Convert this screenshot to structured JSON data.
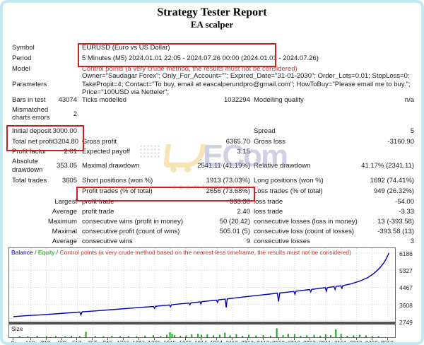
{
  "page": {
    "title": "Strategy Tester Report",
    "subtitle": "EA scalper"
  },
  "report": {
    "rows": [
      {
        "name": "row-symbol",
        "h": 15,
        "c1l": "Symbol",
        "wide": "EURUSD (Euro vs US Dollar)"
      },
      {
        "name": "row-period",
        "h": 15,
        "c1l": "Period",
        "wide": "5 Minutes (M5) 2024.01.01 22:05 - 2024.07.26 00:00 (2024.01.01 - 2024.07.26)"
      },
      {
        "name": "row-model",
        "h": 15,
        "c1l": "Model",
        "wide": "Control points (a very crude method, the results must not be considered)",
        "wide_red": true
      },
      {
        "name": "row-parameters",
        "h": 29,
        "c1l": "Parameters",
        "wide": "Owner=\"Saudagar Forex\"; Only_For_Account=\"\"; Expired_Date=\"31-01-2030\"; Order_Lots=0.01; StopLoss=0; TakePropit=4; Contact=\"To buy, email at eascalperundpro@gmail.com\"; HowToBuy=\"Please email me to buy.\"; Price=\"100USD via Netteler\";"
      },
      {
        "name": "row-bars-in-test",
        "h": 14,
        "c1l": "Bars in test",
        "c1v": "43074",
        "c2l": "Ticks modelled",
        "c2v": "1032294",
        "c3l": "Modelling quality",
        "c3v": "n/a"
      },
      {
        "name": "row-mismatched",
        "h": 26,
        "c1wrap": true,
        "c1l": "Mismatched charts errors",
        "c1v": "2"
      },
      {
        "spacer": true,
        "h": 4
      },
      {
        "name": "row-initial-deposit",
        "h": 15,
        "c1l": "Initial deposit",
        "c1v": "3000.00",
        "c3l": "Spread",
        "c3v": "5"
      },
      {
        "name": "row-net-profit",
        "h": 15,
        "c1l": "Total net profit",
        "c1v": "3204.80",
        "c2l": "Gross profit",
        "c2v": "6365.70",
        "c3l": "Gross loss",
        "c3v": "-3160.90"
      },
      {
        "name": "row-profit-factor",
        "h": 13,
        "c1l": "Profit factor",
        "c1v": "2.01",
        "c2l": "Expected payoff",
        "c2v": "3.15"
      },
      {
        "name": "row-drawdown",
        "h": 27,
        "c1wrap": true,
        "c1l": "Absolute drawdown",
        "c1v": "353.05",
        "c2l": "Maximal drawdown",
        "c2v": "2541.11 (41.19%)",
        "c3l": "Relative drawdown",
        "c3v": "41.17% (2341.11)"
      },
      {
        "name": "row-total-trades",
        "h": 15,
        "c1l": "Total trades",
        "c1v": "3605",
        "c2l": "Short positions (won %)",
        "c2v": "1913 (73.03%)",
        "c3l": "Long positions (won %)",
        "c3v": "1692 (74.41%)"
      },
      {
        "name": "row-profit-trades",
        "h": 15,
        "c2l": "Profit trades (% of total)",
        "c2v": "2656 (73.68%)",
        "c3l": "Loss trades (% of total)",
        "c3v": "949 (26.32%)"
      },
      {
        "name": "row-largest",
        "h": 14,
        "c1v": "Largest",
        "c2l": "profit trade",
        "c2v": "333.38",
        "c3l": "loss trade",
        "c3v": "-54.00"
      },
      {
        "name": "row-average-trade",
        "h": 14,
        "c1v": "Average",
        "c2l": "profit trade",
        "c2v": "2.40",
        "c3l": "loss trade",
        "c3v": "-3.33"
      },
      {
        "name": "row-maximum-consecutive",
        "h": 14,
        "c1v": "Maximum",
        "c2l": "consecutive wins (profit in money)",
        "c2v": "50 (20.42)",
        "c3l": "consecutive losses (loss in money)",
        "c3v": "13 (-393.58)"
      },
      {
        "name": "row-maximal-consecutive",
        "h": 14,
        "c1v": "Maximal",
        "c2l": "consecutive profit (count of wins)",
        "c2v": "505.01 (5)",
        "c3l": "consecutive loss (count of losses)",
        "c3v": "-393.58 (13)"
      },
      {
        "name": "row-average-consecutive",
        "h": 14,
        "c1v": "Average",
        "c2l": "consecutive wins",
        "c2v": "9",
        "c3l": "consecutive losses",
        "c3v": "3"
      }
    ]
  },
  "chart_header": {
    "balance": "Balance",
    "equity": "Equity",
    "sep": " / ",
    "note": "Control points (a very crude method based on the nearest less timeframe, the results must not be considered)"
  },
  "watermark": {
    "logo_text": "ECom",
    "caption": "ecomforex.com"
  },
  "colors": {
    "accent_red": "#d22d2d",
    "balance_blue": "#0000b4",
    "equity_green": "#00a000",
    "bars_green": "#18a31c",
    "frame_cyan": "#bfe8ef",
    "grid_gray": "#cfcfcf"
  },
  "chart_data": {
    "type": "line",
    "title": "Balance / Equity / Control points (a very crude method based on the nearest less timeframe, the results must not be considered)",
    "legend_position": "top-left",
    "grid": true,
    "x_range": [
      -40,
      3680
    ],
    "y_range": [
      2749,
      6430
    ],
    "x_ticks": [
      0,
      168,
      318,
      468,
      617,
      767,
      916,
      1066,
      1216,
      1365,
      1515,
      1665,
      1814,
      1964,
      2113,
      2263,
      2413,
      2562,
      2712,
      2862,
      3011,
      3161,
      3310,
      3460,
      3610
    ],
    "y_ticks": [
      6186,
      5327,
      4467,
      3608,
      2749
    ],
    "xlabel": "",
    "ylabel": "",
    "series": [
      {
        "name": "Balance",
        "points": [
          [
            0,
            3000
          ],
          [
            120,
            3045
          ],
          [
            260,
            3090
          ],
          [
            400,
            3140
          ],
          [
            540,
            3190
          ],
          [
            640,
            3230
          ],
          [
            652,
            3090
          ],
          [
            664,
            3240
          ],
          [
            800,
            3290
          ],
          [
            950,
            3350
          ],
          [
            1100,
            3410
          ],
          [
            1250,
            3470
          ],
          [
            1352,
            3510
          ],
          [
            1362,
            3415
          ],
          [
            1372,
            3520
          ],
          [
            1460,
            3560
          ],
          [
            1505,
            3585
          ],
          [
            1515,
            3495
          ],
          [
            1525,
            3595
          ],
          [
            1610,
            3640
          ],
          [
            1692,
            3680
          ],
          [
            1702,
            3590
          ],
          [
            1712,
            3690
          ],
          [
            1800,
            3740
          ],
          [
            1808,
            3630
          ],
          [
            1818,
            3750
          ],
          [
            1905,
            3800
          ],
          [
            1958,
            3830
          ],
          [
            1968,
            3720
          ],
          [
            1978,
            3840
          ],
          [
            2042,
            3880
          ],
          [
            2052,
            3460
          ],
          [
            2062,
            3890
          ],
          [
            2160,
            3950
          ],
          [
            2280,
            4020
          ],
          [
            2400,
            4090
          ],
          [
            2470,
            4130
          ],
          [
            2545,
            4175
          ],
          [
            2557,
            3760
          ],
          [
            2569,
            4185
          ],
          [
            2660,
            4240
          ],
          [
            2705,
            4265
          ],
          [
            2715,
            4120
          ],
          [
            2725,
            4275
          ],
          [
            2830,
            4340
          ],
          [
            2857,
            4355
          ],
          [
            2867,
            4240
          ],
          [
            2877,
            4365
          ],
          [
            2960,
            4420
          ],
          [
            3008,
            4450
          ],
          [
            3018,
            4270
          ],
          [
            3028,
            4460
          ],
          [
            3092,
            4505
          ],
          [
            3102,
            4360
          ],
          [
            3112,
            4515
          ],
          [
            3158,
            4545
          ],
          [
            3168,
            4420
          ],
          [
            3178,
            4555
          ],
          [
            3260,
            4650
          ],
          [
            3340,
            4780
          ],
          [
            3420,
            4960
          ],
          [
            3480,
            5180
          ],
          [
            3530,
            5420
          ],
          [
            3570,
            5680
          ],
          [
            3600,
            5950
          ],
          [
            3612,
            6080
          ],
          [
            3620,
            6186
          ]
        ]
      }
    ],
    "size_panel": {
      "label": "Size",
      "bars": [
        [
          60,
          0.12
        ],
        [
          140,
          0.1
        ],
        [
          230,
          0.15
        ],
        [
          320,
          0.1
        ],
        [
          410,
          0.12
        ],
        [
          500,
          0.1
        ],
        [
          560,
          0.14
        ],
        [
          640,
          0.12
        ],
        [
          700,
          0.55
        ],
        [
          790,
          0.12
        ],
        [
          870,
          0.1
        ],
        [
          950,
          0.14
        ],
        [
          1030,
          0.1
        ],
        [
          1110,
          0.12
        ],
        [
          1190,
          0.1
        ],
        [
          1270,
          0.15
        ],
        [
          1350,
          0.2
        ],
        [
          1420,
          0.12
        ],
        [
          1480,
          0.25
        ],
        [
          1510,
          0.5
        ],
        [
          1530,
          0.35
        ],
        [
          1555,
          0.2
        ],
        [
          1610,
          0.15
        ],
        [
          1665,
          0.18
        ],
        [
          1720,
          0.3
        ],
        [
          1780,
          0.35
        ],
        [
          1814,
          0.25
        ],
        [
          1870,
          0.3
        ],
        [
          1930,
          0.2
        ],
        [
          1990,
          0.25
        ],
        [
          2040,
          0.45
        ],
        [
          2090,
          0.2
        ],
        [
          2150,
          0.3
        ],
        [
          2210,
          0.15
        ],
        [
          2270,
          0.25
        ],
        [
          2340,
          0.18
        ],
        [
          2410,
          0.2
        ],
        [
          2480,
          0.15
        ],
        [
          2540,
          0.9
        ],
        [
          2600,
          0.2
        ],
        [
          2650,
          0.35
        ],
        [
          2712,
          0.3
        ],
        [
          2770,
          0.15
        ],
        [
          2830,
          0.2
        ],
        [
          2900,
          0.25
        ],
        [
          2960,
          0.15
        ],
        [
          3011,
          0.3
        ],
        [
          3060,
          0.2
        ],
        [
          3110,
          0.8
        ],
        [
          3160,
          0.35
        ],
        [
          3220,
          0.15
        ],
        [
          3280,
          0.2
        ],
        [
          3340,
          0.25
        ],
        [
          3400,
          0.2
        ],
        [
          3460,
          0.12
        ],
        [
          3520,
          0.1
        ]
      ]
    }
  }
}
